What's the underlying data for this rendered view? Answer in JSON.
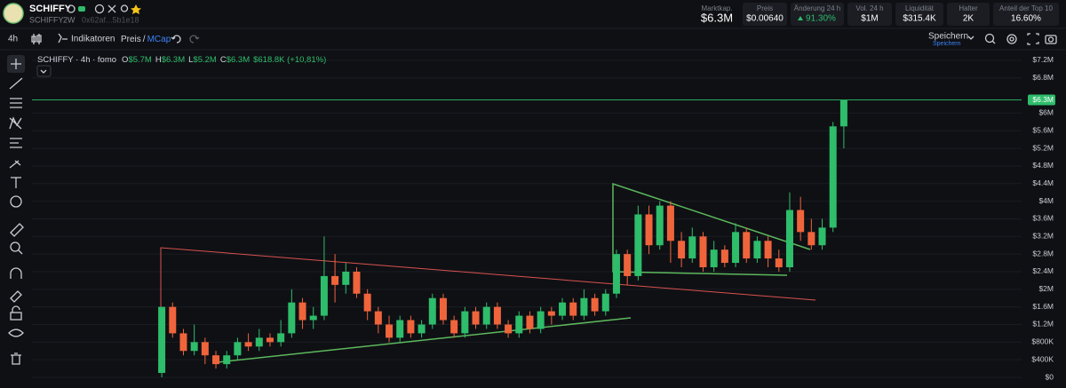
{
  "header": {
    "name": "SCHIFFY",
    "symbol": "SCHIFFY",
    "age": "2W",
    "address": "0x62af...5b1e18"
  },
  "stats": [
    {
      "label": "Marktkap.",
      "value": "$6.3M"
    },
    {
      "label": "Preis",
      "value": "$0.00640"
    },
    {
      "label": "Änderung 24 h",
      "value": "91.30%"
    },
    {
      "label": "Vol. 24 h",
      "value": "$1M"
    },
    {
      "label": "Liquidität",
      "value": "$315.4K"
    },
    {
      "label": "Halter",
      "value": "2K"
    },
    {
      "label": "Anteil der Top 10",
      "value": "16.60%"
    }
  ],
  "toolbar": {
    "interval": "4h",
    "indicators": "Indikatoren",
    "price": "Preis",
    "slash": "/",
    "mcap": "MCap",
    "save": "Speichern",
    "save_sub": "Speichern"
  },
  "legend": {
    "name": "SCHIFFY · 4h · fomo",
    "o_label": "O",
    "o": "$5.7M",
    "h_label": "H",
    "h": "$6.3M",
    "l_label": "L",
    "l": "$5.2M",
    "c_label": "C",
    "c": "$6.3M",
    "change": "$618.8K (+10,81%)"
  },
  "chart_data": {
    "type": "candlestick",
    "up_color": "#2ebd6b",
    "down_color": "#f0643c",
    "grid": true,
    "last_price": 6300000,
    "last_price_label": "$6.3M",
    "ylim": [
      0,
      7400000
    ],
    "yticks": [
      {
        "value": 0,
        "label": "$0"
      },
      {
        "value": 400000,
        "label": "$400K"
      },
      {
        "value": 800000,
        "label": "$800K"
      },
      {
        "value": 1200000,
        "label": "$1.2M"
      },
      {
        "value": 1600000,
        "label": "$1.6M"
      },
      {
        "value": 2000000,
        "label": "$2M"
      },
      {
        "value": 2400000,
        "label": "$2.4M"
      },
      {
        "value": 2800000,
        "label": "$2.8M"
      },
      {
        "value": 3200000,
        "label": "$3.2M"
      },
      {
        "value": 3600000,
        "label": "$3.6M"
      },
      {
        "value": 4000000,
        "label": "$4M"
      },
      {
        "value": 4400000,
        "label": "$4.4M"
      },
      {
        "value": 4800000,
        "label": "$4.8M"
      },
      {
        "value": 5200000,
        "label": "$5.2M"
      },
      {
        "value": 5600000,
        "label": "$5.6M"
      },
      {
        "value": 6000000,
        "label": "$6M"
      },
      {
        "value": 6800000,
        "label": "$6.8M"
      },
      {
        "value": 7200000,
        "label": "$7.2M"
      }
    ],
    "open": [
      100000,
      1600000,
      1000000,
      600000,
      800000,
      500000,
      300000,
      500000,
      800000,
      700000,
      900000,
      800000,
      1000000,
      1700000,
      1300000,
      1400000,
      2300000,
      2100000,
      2400000,
      1900000,
      1500000,
      1200000,
      900000,
      1300000,
      1000000,
      1200000,
      1800000,
      1300000,
      1000000,
      1500000,
      1200000,
      1600000,
      1200000,
      1000000,
      1400000,
      1100000,
      1500000,
      1400000,
      1700000,
      1400000,
      1800000,
      1500000,
      1900000,
      2800000,
      2300000,
      3700000,
      3000000,
      3900000,
      3100000,
      2700000,
      3200000,
      2500000,
      2900000,
      2600000,
      3300000,
      2700000,
      3100000,
      2700000,
      2500000,
      3800000,
      3300000,
      3000000,
      3400000,
      5700000
    ],
    "high": [
      1600000,
      1700000,
      1100000,
      1200000,
      900000,
      600000,
      600000,
      900000,
      1000000,
      1100000,
      1000000,
      1300000,
      2000000,
      1800000,
      1600000,
      3200000,
      2800000,
      2600000,
      2500000,
      2000000,
      1600000,
      1400000,
      1400000,
      1400000,
      1300000,
      1900000,
      1900000,
      1400000,
      1600000,
      1600000,
      1700000,
      1700000,
      1300000,
      1500000,
      1500000,
      1600000,
      1600000,
      1800000,
      1800000,
      2000000,
      1900000,
      2000000,
      2900000,
      2900000,
      3900000,
      3900000,
      4000000,
      4000000,
      3300000,
      3400000,
      3300000,
      3100000,
      3000000,
      3500000,
      3400000,
      3200000,
      3200000,
      2900000,
      4200000,
      4100000,
      3600000,
      3600000,
      5800000,
      6300000
    ],
    "low": [
      0,
      900000,
      500000,
      500000,
      300000,
      200000,
      200000,
      400000,
      600000,
      600000,
      700000,
      700000,
      900000,
      1100000,
      1100000,
      1300000,
      1700000,
      1900000,
      1800000,
      1300000,
      1000000,
      800000,
      800000,
      900000,
      900000,
      1100000,
      1200000,
      900000,
      900000,
      1100000,
      1100000,
      1100000,
      900000,
      900000,
      1000000,
      1000000,
      1200000,
      1300000,
      1300000,
      1300000,
      1400000,
      1400000,
      1800000,
      2100000,
      2200000,
      2800000,
      2900000,
      2600000,
      2500000,
      2600000,
      2400000,
      2400000,
      2500000,
      2500000,
      2600000,
      2600000,
      2500000,
      2400000,
      2400000,
      3100000,
      2900000,
      2900000,
      3300000,
      5200000
    ],
    "close": [
      1600000,
      1000000,
      600000,
      800000,
      500000,
      300000,
      500000,
      800000,
      700000,
      900000,
      800000,
      1000000,
      1700000,
      1300000,
      1400000,
      2300000,
      2100000,
      2400000,
      1900000,
      1500000,
      1200000,
      900000,
      1300000,
      1000000,
      1200000,
      1800000,
      1300000,
      1000000,
      1500000,
      1200000,
      1600000,
      1200000,
      1000000,
      1400000,
      1100000,
      1500000,
      1400000,
      1700000,
      1400000,
      1800000,
      1500000,
      1900000,
      2800000,
      2300000,
      3700000,
      3000000,
      3900000,
      3100000,
      2700000,
      3200000,
      2500000,
      2900000,
      2600000,
      3300000,
      2700000,
      3100000,
      2700000,
      2500000,
      3800000,
      3300000,
      3000000,
      3400000,
      5700000,
      6300000
    ]
  }
}
